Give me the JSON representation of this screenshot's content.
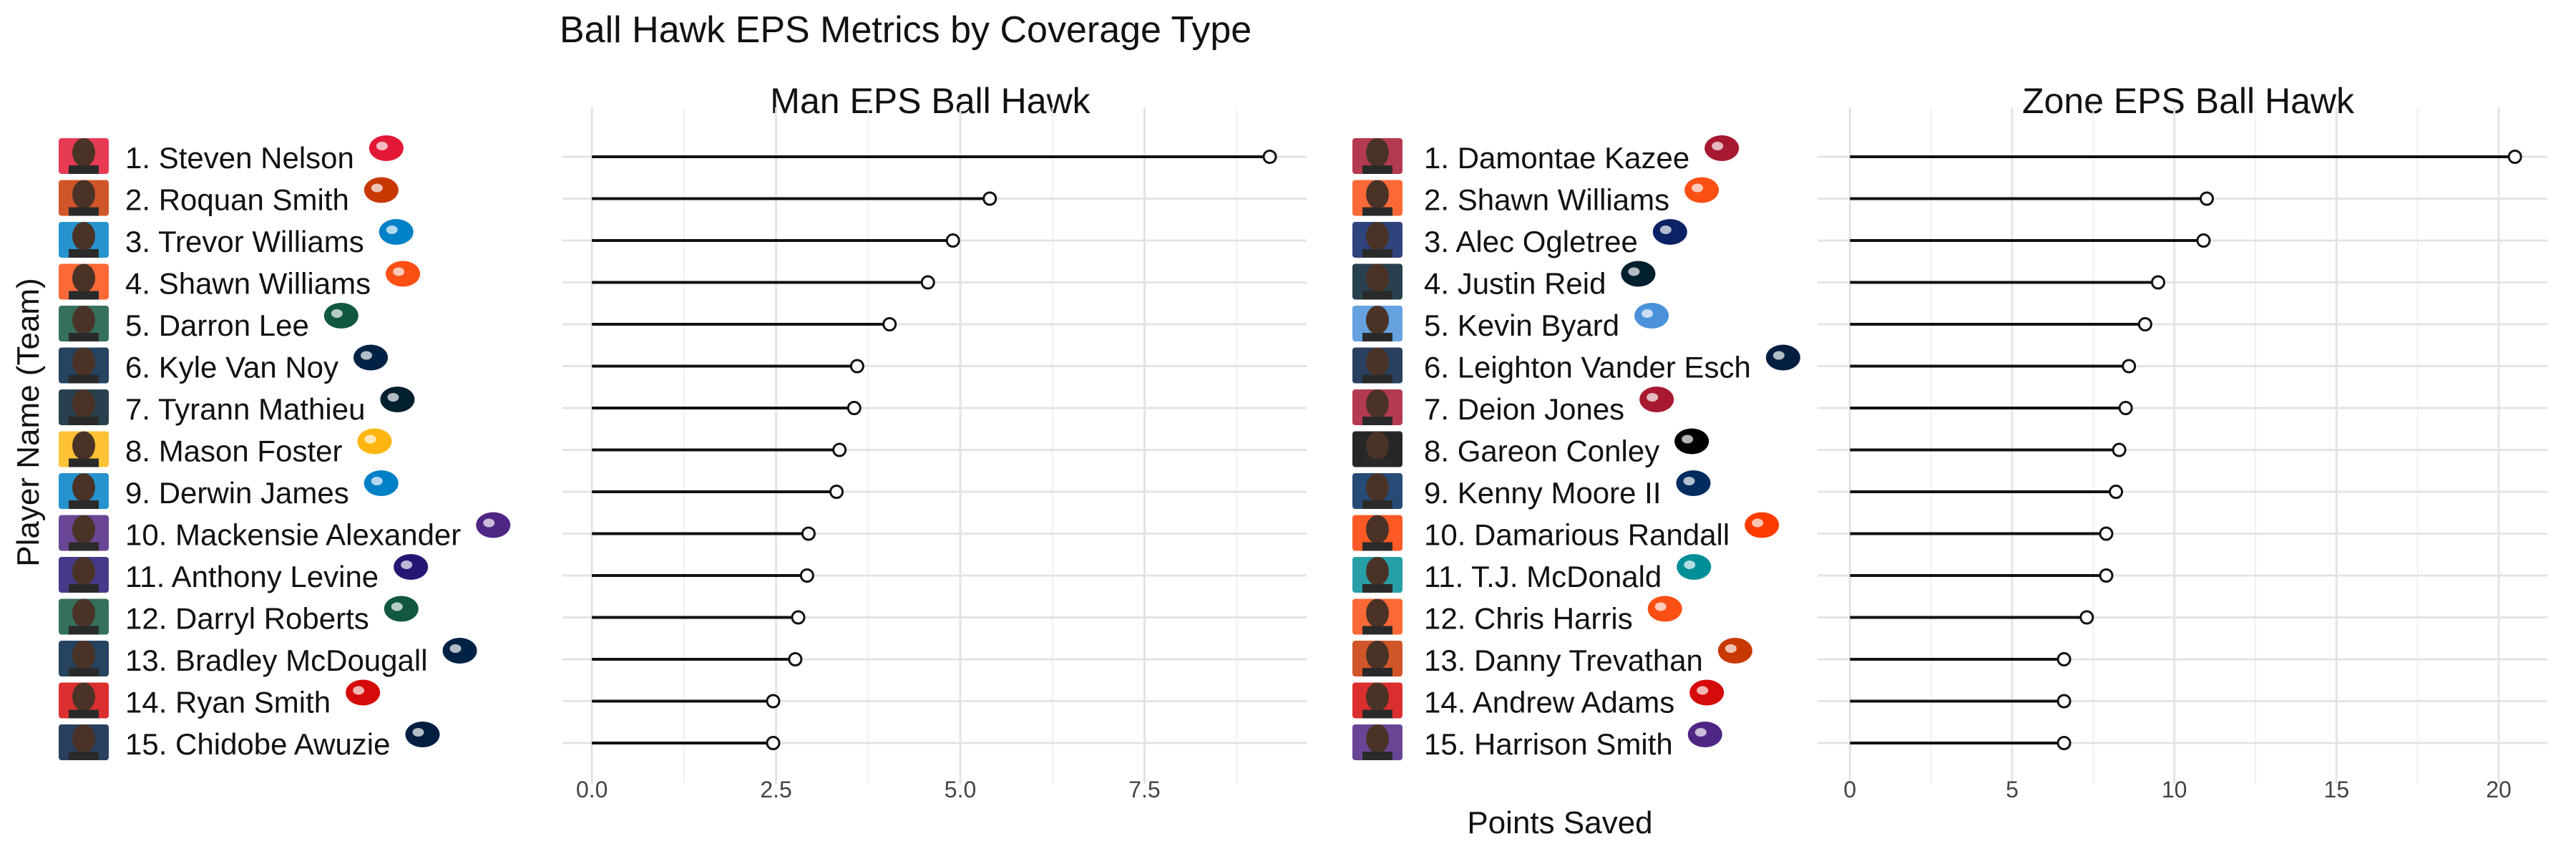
{
  "title": "Ball Hawk EPS Metrics by Coverage Type",
  "ylabel": "Player Name (Team)",
  "xlabel": "Points Saved",
  "chart_data": [
    {
      "type": "lollipop",
      "title": "Man EPS Ball Hawk",
      "xlabel": "Points Saved",
      "ylabel": "Player Name (Team)",
      "xlim": [
        -0.4,
        9.7
      ],
      "xticks": [
        "0.0",
        "2.5",
        "5.0",
        "7.5"
      ],
      "xtick_values": [
        0,
        2.5,
        5,
        7.5
      ],
      "grid": true,
      "categories": [
        "1. Steven Nelson",
        "2. Roquan Smith",
        "3. Trevor Williams",
        "4. Shawn Williams",
        "5. Darron Lee",
        "6. Kyle Van Noy",
        "7. Tyrann Mathieu",
        "8. Mason Foster",
        "9. Derwin James",
        "10. Mackensie Alexander",
        "11. Anthony Levine",
        "12. Darryl Roberts",
        "13. Bradley McDougall",
        "14. Ryan Smith",
        "15. Chidobe Awuzie"
      ],
      "values": [
        9.2,
        5.4,
        4.9,
        4.56,
        4.04,
        3.6,
        3.56,
        3.36,
        3.32,
        2.94,
        2.92,
        2.8,
        2.76,
        2.46,
        2.46
      ],
      "team_logo_colors": [
        "#e31837",
        "#c83803",
        "#0080c6",
        "#fb4f14",
        "#125740",
        "#002244",
        "#03202f",
        "#ffb612",
        "#0080c6",
        "#4f2683",
        "#241773",
        "#125740",
        "#002244",
        "#d50a0a",
        "#041e42"
      ]
    },
    {
      "type": "lollipop",
      "title": "Zone EPS Ball Hawk",
      "xlabel": "Points Saved",
      "ylabel": "Player Name (Team)",
      "xlim": [
        -1,
        21.5
      ],
      "xticks": [
        "0",
        "5",
        "10",
        "15",
        "20"
      ],
      "xtick_values": [
        0,
        5,
        10,
        15,
        20
      ],
      "grid": true,
      "categories": [
        "1. Damontae Kazee",
        "2. Shawn Williams",
        "3. Alec Ogletree",
        "4. Justin Reid",
        "5. Kevin Byard",
        "6. Leighton Vander Esch",
        "7. Deion Jones",
        "8. Gareon Conley",
        "9. Kenny Moore II",
        "10. Damarious Randall",
        "11. T.J. McDonald",
        "12. Chris Harris",
        "13. Danny Trevathan",
        "14. Andrew Adams",
        "15. Harrison Smith"
      ],
      "values": [
        20.5,
        11.0,
        10.9,
        9.5,
        9.1,
        8.6,
        8.5,
        8.3,
        8.2,
        7.9,
        7.9,
        7.3,
        6.6,
        6.6,
        6.6
      ],
      "team_logo_colors": [
        "#a71930",
        "#fb4f14",
        "#0b2265",
        "#03202f",
        "#4b92db",
        "#041e42",
        "#a71930",
        "#000000",
        "#002c5f",
        "#ff3c00",
        "#008e97",
        "#fb4f14",
        "#c83803",
        "#d50a0a",
        "#4f2683"
      ]
    }
  ]
}
